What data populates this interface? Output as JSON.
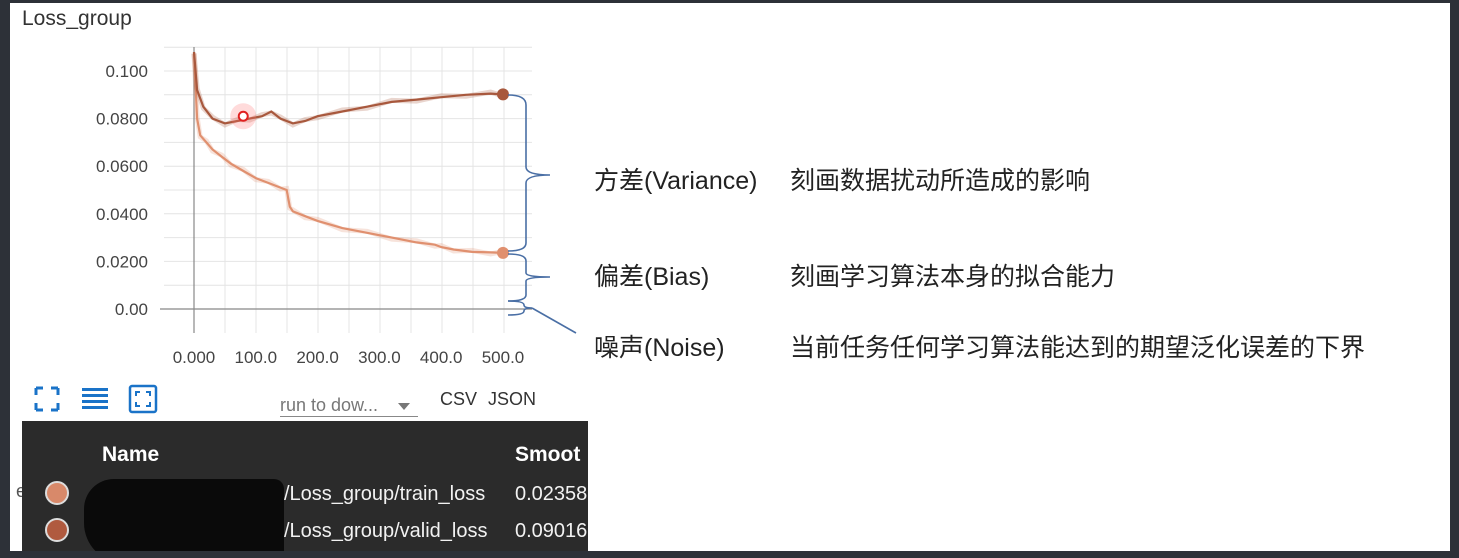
{
  "card": {
    "title": "Loss_group"
  },
  "toolbar": {
    "run_select_text": "run to dow...",
    "download_csv": "CSV",
    "download_json": "JSON"
  },
  "tooltip": {
    "name_header": "Name",
    "smooth_header": "Smoot",
    "partial_left_text": "ea",
    "rows": [
      {
        "run": "/Loss_group/train_loss",
        "smoothed": "0.02358",
        "color": "#d8896a"
      },
      {
        "run": "/Loss_group/valid_loss",
        "smoothed": "0.09016",
        "color": "#b05a3f"
      }
    ]
  },
  "annotations": {
    "variance": {
      "term": "方差(Variance)",
      "desc": "刻画数据扰动所造成的影响"
    },
    "bias": {
      "term": "偏差(Bias)",
      "desc": "刻画学习算法本身的拟合能力"
    },
    "noise": {
      "term": "噪声(Noise)",
      "desc": "当前任务任何学习算法能达到的期望泛化误差的下界"
    }
  },
  "colors": {
    "train": "#e0906f",
    "valid": "#a8583d",
    "bracket": "#4a6fa5"
  },
  "chart_data": {
    "type": "line",
    "title": "Loss_group",
    "xlabel": "",
    "ylabel": "",
    "xlim": [
      0,
      500
    ],
    "ylim": [
      0,
      0.11
    ],
    "x_ticks": [
      "0.000",
      "100.0",
      "200.0",
      "300.0",
      "400.0",
      "500.0"
    ],
    "y_ticks": [
      "0.00",
      "0.0200",
      "0.0400",
      "0.0600",
      "0.0800",
      "0.100"
    ],
    "grid": true,
    "series": [
      {
        "name": "/Loss_group/train_loss",
        "color": "#e0906f",
        "x": [
          0,
          5,
          10,
          20,
          30,
          45,
          60,
          80,
          100,
          120,
          140,
          150,
          155,
          160,
          180,
          200,
          240,
          280,
          320,
          360,
          390,
          400,
          420,
          450,
          480,
          500
        ],
        "y": [
          0.108,
          0.08,
          0.073,
          0.07,
          0.067,
          0.064,
          0.061,
          0.058,
          0.055,
          0.053,
          0.051,
          0.05,
          0.043,
          0.041,
          0.039,
          0.037,
          0.034,
          0.032,
          0.03,
          0.028,
          0.027,
          0.026,
          0.025,
          0.024,
          0.0238,
          0.02358
        ]
      },
      {
        "name": "/Loss_group/valid_loss",
        "color": "#a8583d",
        "x": [
          0,
          5,
          15,
          30,
          50,
          70,
          90,
          110,
          125,
          140,
          160,
          180,
          200,
          240,
          280,
          320,
          360,
          400,
          440,
          480,
          500
        ],
        "y": [
          0.108,
          0.092,
          0.085,
          0.08,
          0.078,
          0.079,
          0.08,
          0.081,
          0.083,
          0.08,
          0.078,
          0.079,
          0.081,
          0.083,
          0.085,
          0.087,
          0.088,
          0.089,
          0.09,
          0.0905,
          0.09016
        ]
      }
    ]
  }
}
